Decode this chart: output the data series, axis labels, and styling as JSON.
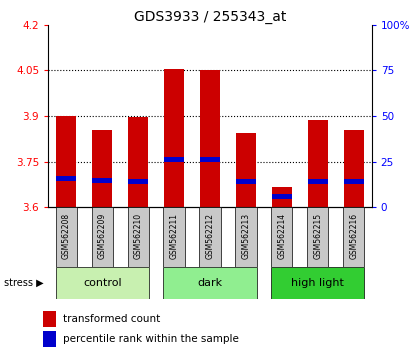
{
  "title": "GDS3933 / 255343_at",
  "samples": [
    "GSM562208",
    "GSM562209",
    "GSM562210",
    "GSM562211",
    "GSM562212",
    "GSM562213",
    "GSM562214",
    "GSM562215",
    "GSM562216"
  ],
  "red_values": [
    3.9,
    3.855,
    3.895,
    4.055,
    4.05,
    3.845,
    3.665,
    3.885,
    3.855
  ],
  "blue_values": [
    3.685,
    3.68,
    3.675,
    3.748,
    3.748,
    3.675,
    3.625,
    3.675,
    3.675
  ],
  "blue_heights": [
    0.018,
    0.016,
    0.016,
    0.016,
    0.016,
    0.016,
    0.018,
    0.016,
    0.016
  ],
  "ylim_left": [
    3.6,
    4.2
  ],
  "yticks_left": [
    3.6,
    3.75,
    3.9,
    4.05,
    4.2
  ],
  "yticks_right": [
    0,
    25,
    50,
    75,
    100
  ],
  "groups": [
    {
      "label": "control",
      "start": 0,
      "end": 3,
      "color": "#c8f0b0"
    },
    {
      "label": "dark",
      "start": 3,
      "end": 6,
      "color": "#90ee90"
    },
    {
      "label": "high light",
      "start": 6,
      "end": 9,
      "color": "#32cd32"
    }
  ],
  "bar_width": 0.55,
  "bar_color_red": "#cc0000",
  "bar_color_blue": "#0000cc",
  "sample_bg_color": "#c8c8c8",
  "gridline_y": [
    3.75,
    3.9,
    4.05
  ]
}
